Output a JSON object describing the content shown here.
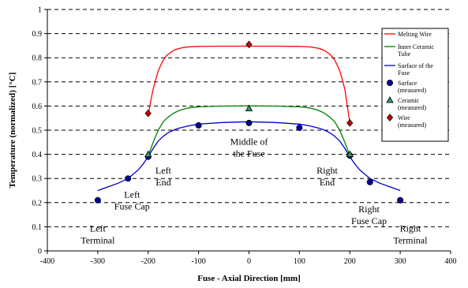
{
  "chart_data": {
    "type": "line",
    "title": "",
    "xlabel": "Fuse - Axial Direction [mm]",
    "ylabel": "Temperature (normalized) [°C]",
    "xlim": [
      -400,
      400
    ],
    "ylim": [
      0,
      1
    ],
    "xticks": [
      -400,
      -300,
      -200,
      -100,
      0,
      100,
      200,
      300,
      400
    ],
    "yticks": [
      0,
      0.1,
      0.2,
      0.3,
      0.4,
      0.5,
      0.6,
      0.7,
      0.8,
      0.9,
      1
    ],
    "xtick_labels": [
      "-400",
      "-300",
      "-200",
      "-100",
      "0",
      "100",
      "200",
      "300",
      "400"
    ],
    "ytick_labels": [
      "0",
      "0.1",
      "0.2",
      "0.3",
      "0.4",
      "0.5",
      "0.6",
      "0.7",
      "0.8",
      "0.9",
      "1"
    ],
    "grid": "horizontal-dashed",
    "legend_position": "top-right",
    "series": [
      {
        "name": "Melting Wire",
        "kind": "line",
        "color": "#ff0000",
        "x": [
          -200,
          -195,
          -190,
          -185,
          -180,
          -175,
          -170,
          -165,
          -160,
          -150,
          -140,
          -130,
          -120,
          -100,
          -50,
          0,
          50,
          100,
          120,
          130,
          140,
          150,
          160,
          165,
          170,
          175,
          180,
          185,
          190,
          195,
          200
        ],
        "y": [
          0.56,
          0.62,
          0.67,
          0.71,
          0.745,
          0.77,
          0.79,
          0.805,
          0.815,
          0.83,
          0.838,
          0.842,
          0.845,
          0.847,
          0.848,
          0.848,
          0.848,
          0.847,
          0.845,
          0.842,
          0.838,
          0.83,
          0.815,
          0.805,
          0.79,
          0.77,
          0.745,
          0.71,
          0.67,
          0.6,
          0.53
        ]
      },
      {
        "name": "Inner Ceramic Tube",
        "kind": "line",
        "color": "#008000",
        "x": [
          -200,
          -190,
          -180,
          -170,
          -160,
          -150,
          -140,
          -130,
          -120,
          -100,
          -50,
          0,
          50,
          100,
          120,
          130,
          140,
          150,
          160,
          170,
          180,
          190,
          200
        ],
        "y": [
          0.395,
          0.45,
          0.5,
          0.535,
          0.555,
          0.57,
          0.58,
          0.587,
          0.592,
          0.597,
          0.6,
          0.601,
          0.6,
          0.597,
          0.592,
          0.587,
          0.58,
          0.57,
          0.555,
          0.535,
          0.5,
          0.45,
          0.395
        ]
      },
      {
        "name": "Surface of the Fuse",
        "kind": "line",
        "color": "#0000cc",
        "x": [
          -300,
          -280,
          -260,
          -240,
          -220,
          -210,
          -200,
          -190,
          -180,
          -170,
          -160,
          -150,
          -140,
          -120,
          -100,
          -50,
          0,
          50,
          100,
          120,
          140,
          150,
          160,
          170,
          180,
          190,
          200,
          210,
          220,
          240,
          260,
          280,
          300
        ],
        "y": [
          0.25,
          0.265,
          0.28,
          0.3,
          0.335,
          0.36,
          0.39,
          0.425,
          0.455,
          0.475,
          0.49,
          0.5,
          0.508,
          0.518,
          0.525,
          0.532,
          0.535,
          0.532,
          0.525,
          0.518,
          0.508,
          0.5,
          0.49,
          0.475,
          0.455,
          0.425,
          0.39,
          0.36,
          0.335,
          0.3,
          0.28,
          0.265,
          0.25
        ]
      },
      {
        "name": "Surface (measured)",
        "kind": "marker",
        "marker": "circle",
        "color": "#000099",
        "x": [
          -300,
          -240,
          -200,
          -100,
          0,
          100,
          200,
          240,
          300
        ],
        "y": [
          0.21,
          0.3,
          0.39,
          0.52,
          0.53,
          0.51,
          0.395,
          0.285,
          0.21
        ]
      },
      {
        "name": "Ceramic (measured)",
        "kind": "marker",
        "marker": "triangle",
        "color": "#339966",
        "x": [
          -200,
          0,
          200
        ],
        "y": [
          0.4,
          0.59,
          0.4
        ]
      },
      {
        "name": "Wire (measured)",
        "kind": "marker",
        "marker": "diamond",
        "color": "#cc0000",
        "x": [
          -200,
          0,
          200
        ],
        "y": [
          0.57,
          0.855,
          0.53
        ]
      }
    ],
    "legend_entries": [
      {
        "lines": [
          "Melting Wire"
        ],
        "series": 0
      },
      {
        "lines": [
          "Inner Ceramic",
          "Tube"
        ],
        "series": 1
      },
      {
        "lines": [
          "Surface of the",
          "Fuse"
        ],
        "series": 2
      },
      {
        "lines": [
          "Surface",
          "(measured)"
        ],
        "series": 3
      },
      {
        "lines": [
          "Ceramic",
          "(measured)"
        ],
        "series": 4
      },
      {
        "lines": [
          "Wire",
          "(measured)"
        ],
        "series": 5
      }
    ],
    "annotations": [
      {
        "lines": [
          "Left",
          "Terminal"
        ],
        "x": -300,
        "y": 0.08
      },
      {
        "lines": [
          "Left",
          "Fuse Cap"
        ],
        "x": -232,
        "y": 0.22
      },
      {
        "lines": [
          "Left",
          "End"
        ],
        "x": -170,
        "y": 0.32
      },
      {
        "lines": [
          "Middle of",
          "the Fuse"
        ],
        "x": 0,
        "y": 0.44
      },
      {
        "lines": [
          "Right",
          "End"
        ],
        "x": 155,
        "y": 0.32
      },
      {
        "lines": [
          "Right",
          "Fuse Cap"
        ],
        "x": 238,
        "y": 0.16
      },
      {
        "lines": [
          "Right",
          "Terminal"
        ],
        "x": 320,
        "y": 0.08
      }
    ]
  }
}
